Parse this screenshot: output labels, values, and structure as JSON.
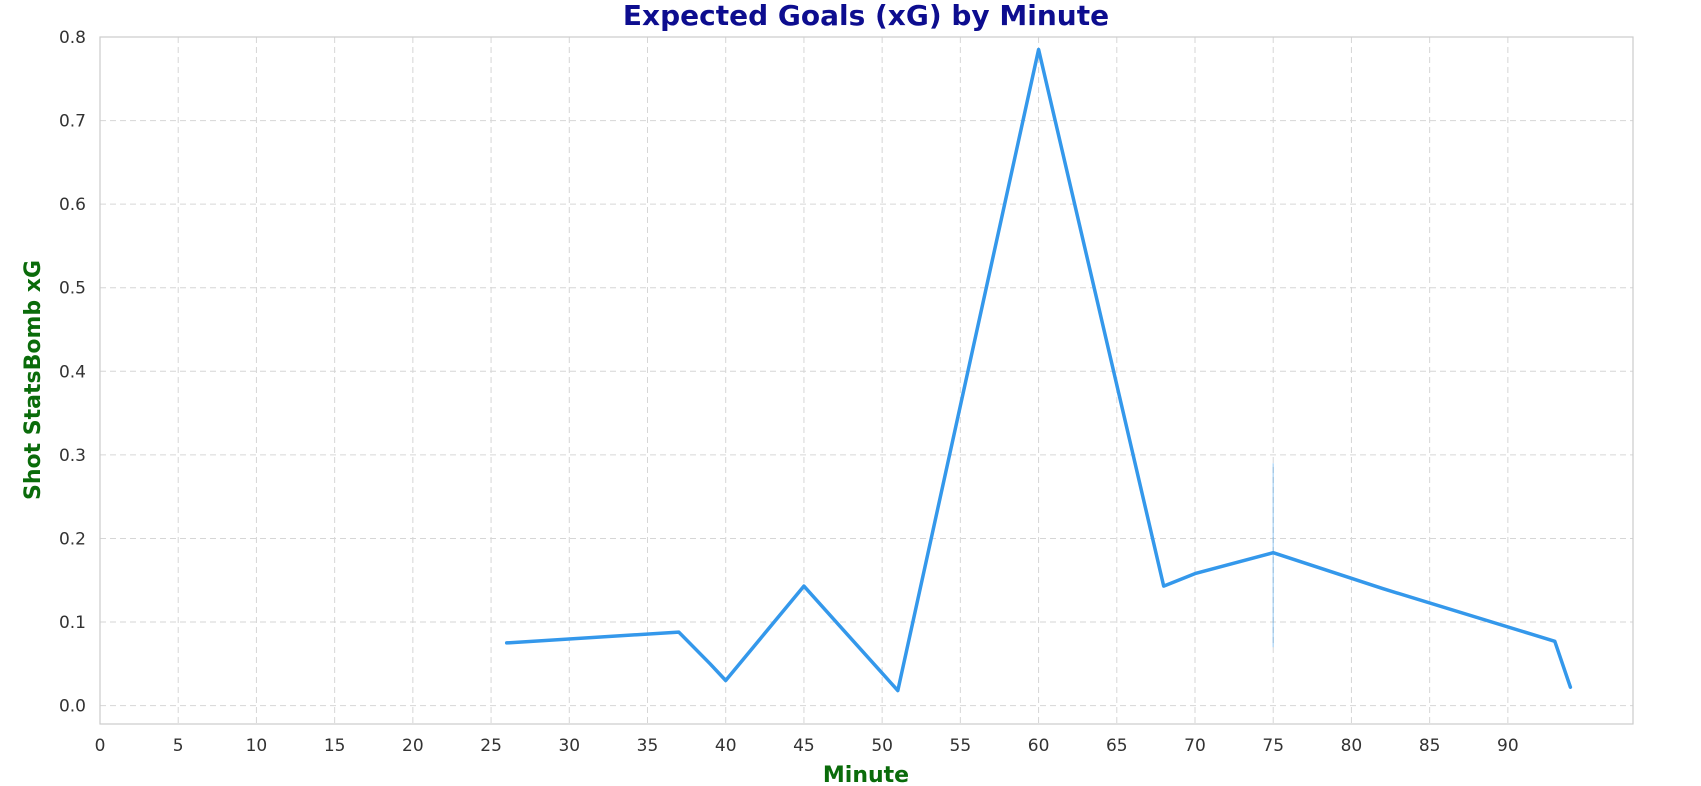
{
  "chart_data": {
    "type": "line",
    "title": "Expected Goals (xG) by Minute",
    "xlabel": "Minute",
    "ylabel": "Shot StatsBomb xG",
    "xlim": [
      0,
      98
    ],
    "ylim": [
      -0.022,
      0.8
    ],
    "x_ticks": [
      0,
      5,
      10,
      15,
      20,
      25,
      30,
      35,
      40,
      45,
      50,
      55,
      60,
      65,
      70,
      75,
      80,
      85,
      90
    ],
    "y_ticks": [
      0.0,
      0.1,
      0.2,
      0.3,
      0.4,
      0.5,
      0.6,
      0.7,
      0.8
    ],
    "grid": true,
    "line_color": "#3498eb",
    "title_color": "#0d0d8f",
    "axis_label_color": "#0a6b0a",
    "series": [
      {
        "x": [
          26,
          37,
          39,
          40,
          45,
          51,
          60,
          68,
          70,
          75,
          82,
          93,
          94
        ],
        "y": [
          0.075,
          0.088,
          0.05,
          0.03,
          0.143,
          0.018,
          0.785,
          0.143,
          0.158,
          0.183,
          0.14,
          0.077,
          0.022
        ]
      }
    ],
    "bands": [
      {
        "x": 75,
        "y": [
          0.07,
          0.29
        ]
      }
    ]
  }
}
